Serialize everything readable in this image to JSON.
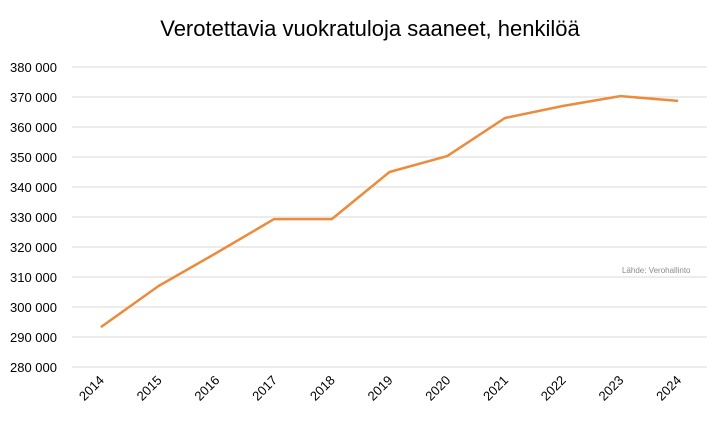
{
  "chart_data": {
    "type": "line",
    "title": "Verotettavia vuokratuloja saaneet, henkilöä",
    "source": "Lähde: Verohallinto",
    "categories": [
      "2014",
      "2015",
      "2016",
      "2017",
      "2018",
      "2019",
      "2020",
      "2021",
      "2022",
      "2023",
      "2024"
    ],
    "series": [
      {
        "name": "Henkilöä",
        "color": "#ed8b3c",
        "values": [
          293300,
          307000,
          318000,
          329300,
          329300,
          345000,
          350300,
          363000,
          367000,
          370300,
          368700
        ]
      }
    ],
    "ylim": [
      280000,
      380000
    ],
    "yticks": [
      {
        "value": 280000,
        "label": "280 000"
      },
      {
        "value": 290000,
        "label": "290 000"
      },
      {
        "value": 300000,
        "label": "300 000"
      },
      {
        "value": 310000,
        "label": "310 000"
      },
      {
        "value": 320000,
        "label": "320 000"
      },
      {
        "value": 330000,
        "label": "330 000"
      },
      {
        "value": 340000,
        "label": "340 000"
      },
      {
        "value": 350000,
        "label": "350 000"
      },
      {
        "value": 360000,
        "label": "360 000"
      },
      {
        "value": 370000,
        "label": "370 000"
      },
      {
        "value": 380000,
        "label": "380 000"
      }
    ],
    "grid": true
  }
}
